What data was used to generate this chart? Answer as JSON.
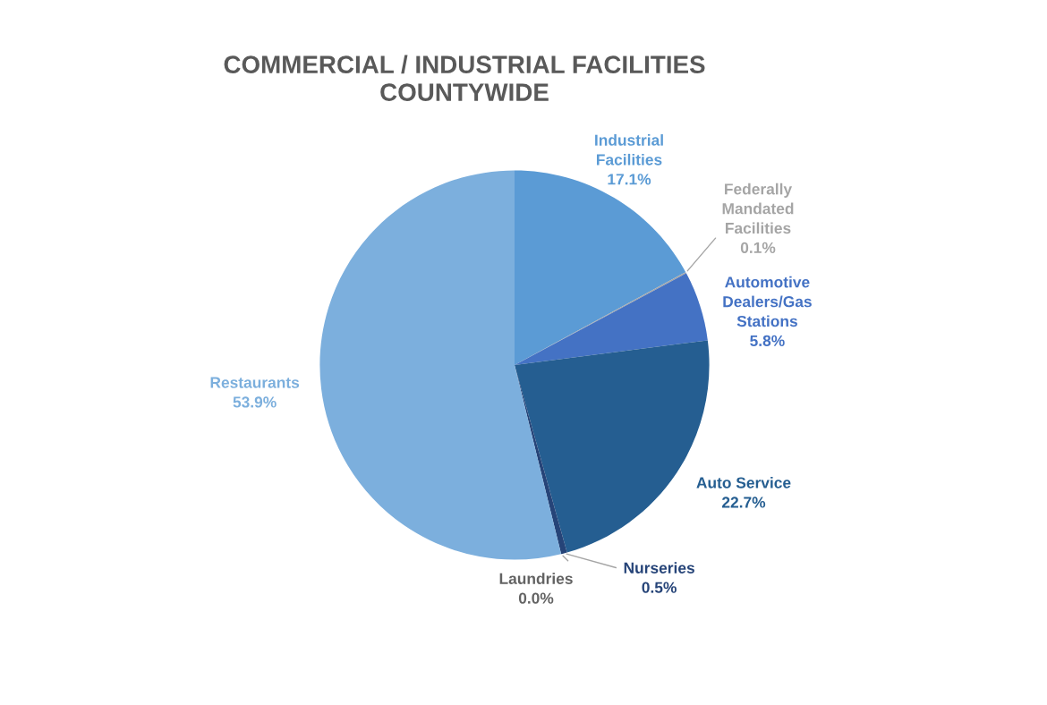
{
  "chart_data": {
    "type": "pie",
    "title": "COMMERCIAL / INDUSTRIAL FACILITIES\nCOUNTYWIDE",
    "categories": [
      "Industrial\nFacilities",
      "Federally\nMandated\nFacilities",
      "Automotive\nDealers/Gas\nStations",
      "Auto Service",
      "Nurseries",
      "Laundries",
      "Restaurants"
    ],
    "values": [
      17.1,
      0.1,
      5.8,
      22.7,
      0.5,
      0.0,
      53.9
    ],
    "colors": [
      "#5b9bd5",
      "#a5a5a5",
      "#4472c4",
      "#255e91",
      "#264478",
      "#636363",
      "#7cafdd"
    ],
    "value_labels": [
      "17.1%",
      "0.1%",
      "5.8%",
      "22.7%",
      "0.5%",
      "0.0%",
      "53.9%"
    ]
  }
}
